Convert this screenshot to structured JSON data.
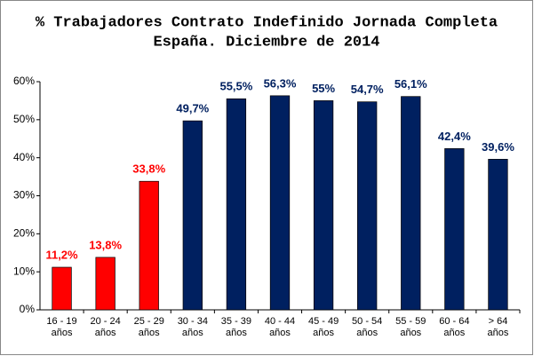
{
  "chart_data": {
    "type": "bar",
    "title": [
      "% Trabajadores Contrato Indefinido Jornada Completa",
      "España. Diciembre de 2014"
    ],
    "categories": [
      [
        "16 - 19",
        "años"
      ],
      [
        "20 - 24",
        "años"
      ],
      [
        "25 - 29",
        "años"
      ],
      [
        "30 - 34",
        "años"
      ],
      [
        "35 - 39",
        "años"
      ],
      [
        "40 - 44",
        "años"
      ],
      [
        "45 - 49",
        "años"
      ],
      [
        "50 - 54",
        "años"
      ],
      [
        "55 - 59",
        "años"
      ],
      [
        "60 - 64",
        "años"
      ],
      [
        "> 64",
        "años"
      ]
    ],
    "values": [
      11.2,
      13.8,
      33.8,
      49.7,
      55.5,
      56.3,
      55,
      54.7,
      56.1,
      42.4,
      39.6
    ],
    "value_labels": [
      "11,2%",
      "13,8%",
      "33,8%",
      "49,7%",
      "55,5%",
      "56,3%",
      "55%",
      "54,7%",
      "56,1%",
      "42,4%",
      "39,6%"
    ],
    "colors": [
      "#ff0000",
      "#ff0000",
      "#ff0000",
      "#002060",
      "#002060",
      "#002060",
      "#002060",
      "#002060",
      "#002060",
      "#002060",
      "#002060"
    ],
    "ylim": [
      0,
      60
    ],
    "yticks": [
      {
        "value": 0,
        "label": "0%"
      },
      {
        "value": 10,
        "label": "10%"
      },
      {
        "value": 20,
        "label": "20%"
      },
      {
        "value": 30,
        "label": "30%"
      },
      {
        "value": 40,
        "label": "40%"
      },
      {
        "value": 50,
        "label": "50%"
      },
      {
        "value": 60,
        "label": "60%"
      }
    ],
    "grid": false
  }
}
